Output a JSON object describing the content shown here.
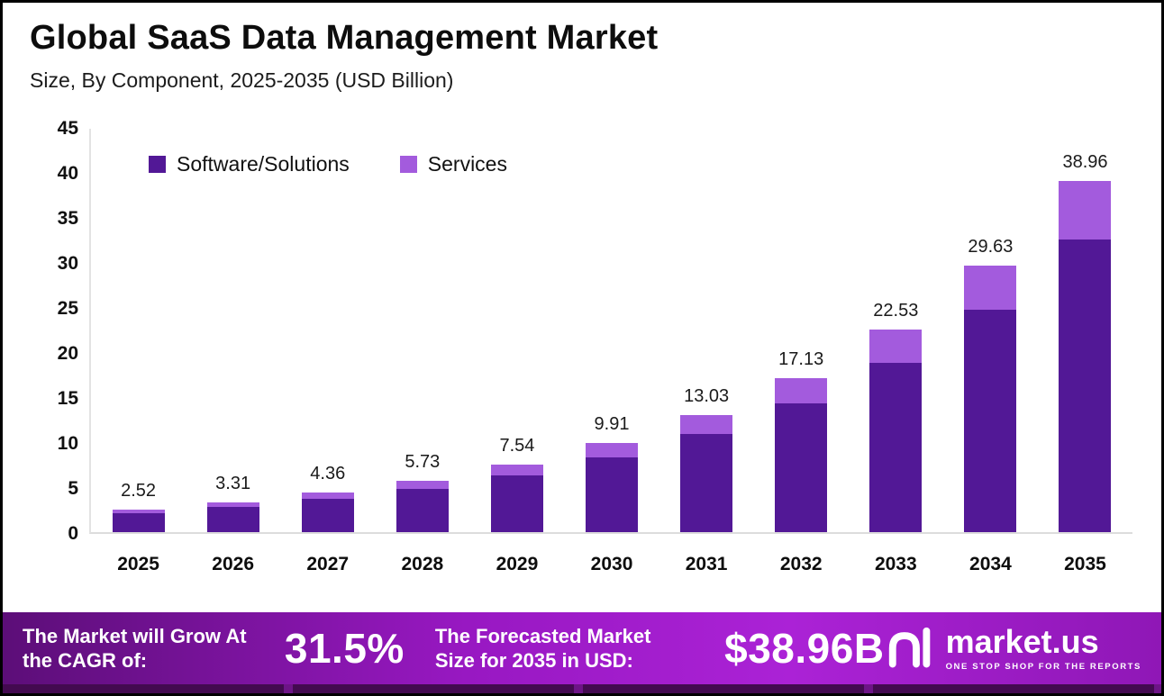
{
  "chart_data": {
    "type": "stacked-bar",
    "title": "Global SaaS Data Management Market",
    "subtitle": "Size, By Component, 2025-2035 (USD Billion)",
    "categories": [
      "2025",
      "2026",
      "2027",
      "2028",
      "2029",
      "2030",
      "2031",
      "2032",
      "2033",
      "2034",
      "2035"
    ],
    "totals": [
      2.52,
      3.31,
      4.36,
      5.73,
      7.54,
      9.91,
      13.03,
      17.13,
      22.53,
      29.63,
      38.96
    ],
    "series": [
      {
        "name": "Software/Solutions",
        "color": "#521896",
        "values": [
          2.12,
          2.79,
          3.66,
          4.8,
          6.3,
          8.26,
          10.88,
          14.33,
          18.83,
          24.73,
          32.46
        ]
      },
      {
        "name": "Services",
        "color": "#a35bdd",
        "values": [
          0.4,
          0.52,
          0.7,
          0.93,
          1.24,
          1.65,
          2.15,
          2.8,
          3.7,
          4.9,
          6.5
        ]
      }
    ],
    "ylim": [
      0,
      45
    ],
    "yticks": [
      45,
      40,
      35,
      30,
      25,
      20,
      15,
      10,
      5,
      0
    ],
    "xlabel": "",
    "ylabel": "",
    "grid": false,
    "legend_position": "top-left"
  },
  "footer": {
    "cagr_label": "The Market will Grow At the CAGR of:",
    "cagr_value": "31.5%",
    "forecast_label": "The Forecasted Market Size for 2035 in USD:",
    "forecast_value": "$38.96B",
    "brand": {
      "name": "market.us",
      "tagline": "ONE STOP SHOP FOR THE REPORTS"
    }
  },
  "colors": {
    "software_bar": "#521896",
    "services_bar": "#a35bdd",
    "footer_gradient_start": "#5c0e78",
    "footer_gradient_mid": "#ab22d6",
    "footer_gradient_end": "#8f17b6",
    "text": "#0d0d0d",
    "footer_text": "#ffffff"
  }
}
